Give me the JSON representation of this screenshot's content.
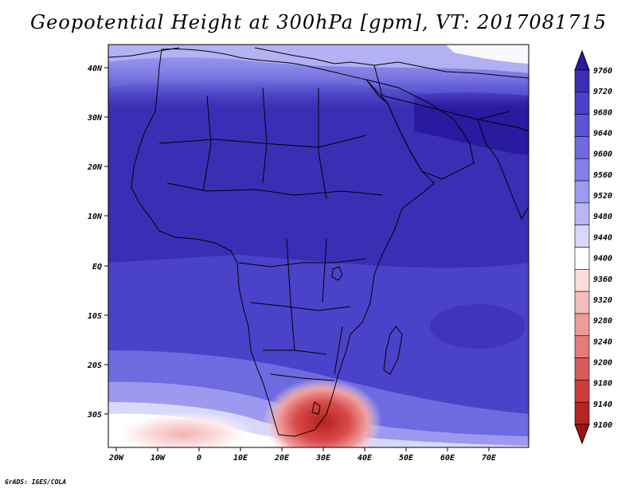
{
  "title": "Geopotential Height at 300hPa [gpm], VT: 2017081715",
  "footer": "GrADS: IGES/COLA",
  "map": {
    "lon_labels": [
      "20W",
      "10W",
      "0",
      "10E",
      "20E",
      "30E",
      "40E",
      "50E",
      "60E",
      "70E"
    ],
    "lat_labels": [
      "40N",
      "30N",
      "20N",
      "10N",
      "EQ",
      "10S",
      "20S",
      "30S"
    ]
  },
  "colorbar": {
    "labels": [
      "9760",
      "9720",
      "9680",
      "9640",
      "9600",
      "9560",
      "9520",
      "9480",
      "9440",
      "9400",
      "9360",
      "9320",
      "9280",
      "9240",
      "9200",
      "9180",
      "9140",
      "9100"
    ],
    "colors": [
      "#2a1aa0",
      "#3a2fb4",
      "#4a42c8",
      "#5a55d6",
      "#6e6ae0",
      "#8380e8",
      "#9c99ee",
      "#b8b6f4",
      "#d8d8fa",
      "#ffffff",
      "#fadede",
      "#f4bcbc",
      "#ec9a9a",
      "#e47a7a",
      "#da5a5a",
      "#cd3c3c",
      "#b82424",
      "#9e1212"
    ]
  }
}
